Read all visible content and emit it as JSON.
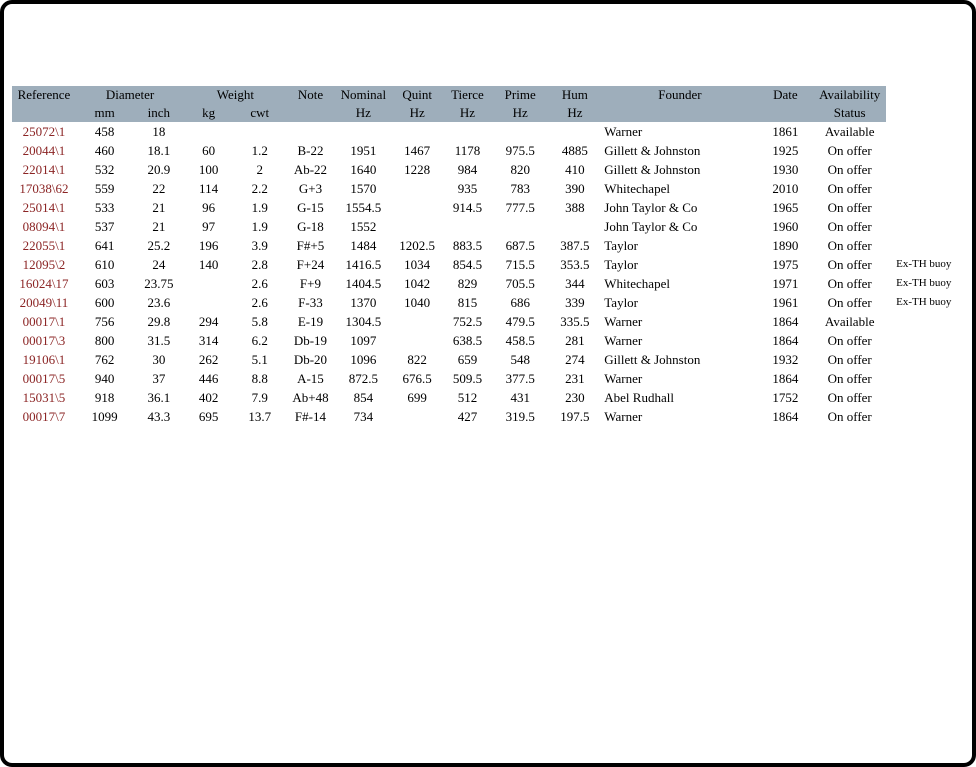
{
  "page": {
    "background": "#ffffff",
    "frame_color": "#000000"
  },
  "table": {
    "header_bg": "#9eaebb",
    "ref_color": "#8b2424",
    "column_keys": [
      "ref",
      "mm",
      "inch",
      "kg",
      "cwt",
      "note",
      "nominal",
      "quint",
      "tierce",
      "prime",
      "hum",
      "founder",
      "date",
      "status",
      "annotation"
    ],
    "header": {
      "reference": "Reference",
      "diameter": "Diameter",
      "weight": "Weight",
      "note": "Note",
      "nominal": "Nominal",
      "quint": "Quint",
      "tierce": "Tierce",
      "prime": "Prime",
      "hum": "Hum",
      "hz": "Hz",
      "mm": "mm",
      "inch": "inch",
      "kg": "kg",
      "cwt": "cwt",
      "founder": "Founder",
      "date": "Date",
      "availability": "Availability",
      "status": "Status"
    },
    "rows": [
      {
        "ref": "25072\\1",
        "mm": "458",
        "inch": "18",
        "kg": "",
        "cwt": "",
        "note": "",
        "nominal": "",
        "quint": "",
        "tierce": "",
        "prime": "",
        "hum": "",
        "founder": "Warner",
        "date": "1861",
        "status": "Available",
        "annotation": ""
      },
      {
        "ref": "20044\\1",
        "mm": "460",
        "inch": "18.1",
        "kg": "60",
        "cwt": "1.2",
        "note": "B-22",
        "nominal": "1951",
        "quint": "1467",
        "tierce": "1178",
        "prime": "975.5",
        "hum": "4885",
        "founder": "Gillett & Johnston",
        "date": "1925",
        "status": "On offer",
        "annotation": ""
      },
      {
        "ref": "22014\\1",
        "mm": "532",
        "inch": "20.9",
        "kg": "100",
        "cwt": "2",
        "note": "Ab-22",
        "nominal": "1640",
        "quint": "1228",
        "tierce": "984",
        "prime": "820",
        "hum": "410",
        "founder": "Gillett & Johnston",
        "date": "1930",
        "status": "On offer",
        "annotation": ""
      },
      {
        "ref": "17038\\62",
        "mm": "559",
        "inch": "22",
        "kg": "114",
        "cwt": "2.2",
        "note": "G+3",
        "nominal": "1570",
        "quint": "",
        "tierce": "935",
        "prime": "783",
        "hum": "390",
        "founder": "Whitechapel",
        "date": "2010",
        "status": "On offer",
        "annotation": ""
      },
      {
        "ref": "25014\\1",
        "mm": "533",
        "inch": "21",
        "kg": "96",
        "cwt": "1.9",
        "note": "G-15",
        "nominal": "1554.5",
        "quint": "",
        "tierce": "914.5",
        "prime": "777.5",
        "hum": "388",
        "founder": "John Taylor & Co",
        "date": "1965",
        "status": "On offer",
        "annotation": ""
      },
      {
        "ref": "08094\\1",
        "mm": "537",
        "inch": "21",
        "kg": "97",
        "cwt": "1.9",
        "note": "G-18",
        "nominal": "1552",
        "quint": "",
        "tierce": "",
        "prime": "",
        "hum": "",
        "founder": "John Taylor & Co",
        "date": "1960",
        "status": "On offer",
        "annotation": ""
      },
      {
        "ref": "22055\\1",
        "mm": "641",
        "inch": "25.2",
        "kg": "196",
        "cwt": "3.9",
        "note": "F#+5",
        "nominal": "1484",
        "quint": "1202.5",
        "tierce": "883.5",
        "prime": "687.5",
        "hum": "387.5",
        "founder": "Taylor",
        "date": "1890",
        "status": "On offer",
        "annotation": ""
      },
      {
        "ref": "12095\\2",
        "mm": "610",
        "inch": "24",
        "kg": "140",
        "cwt": "2.8",
        "note": "F+24",
        "nominal": "1416.5",
        "quint": "1034",
        "tierce": "854.5",
        "prime": "715.5",
        "hum": "353.5",
        "founder": "Taylor",
        "date": "1975",
        "status": "On offer",
        "annotation": "Ex-TH buoy"
      },
      {
        "ref": "16024\\17",
        "mm": "603",
        "inch": "23.75",
        "kg": "",
        "cwt": "2.6",
        "note": "F+9",
        "nominal": "1404.5",
        "quint": "1042",
        "tierce": "829",
        "prime": "705.5",
        "hum": "344",
        "founder": "Whitechapel",
        "date": "1971",
        "status": "On offer",
        "annotation": "Ex-TH buoy"
      },
      {
        "ref": "20049\\11",
        "mm": "600",
        "inch": "23.6",
        "kg": "",
        "cwt": "2.6",
        "note": "F-33",
        "nominal": "1370",
        "quint": "1040",
        "tierce": "815",
        "prime": "686",
        "hum": "339",
        "founder": "Taylor",
        "date": "1961",
        "status": "On offer",
        "annotation": "Ex-TH buoy"
      },
      {
        "ref": "00017\\1",
        "mm": "756",
        "inch": "29.8",
        "kg": "294",
        "cwt": "5.8",
        "note": "E-19",
        "nominal": "1304.5",
        "quint": "",
        "tierce": "752.5",
        "prime": "479.5",
        "hum": "335.5",
        "founder": "Warner",
        "date": "1864",
        "status": "Available",
        "annotation": ""
      },
      {
        "ref": "00017\\3",
        "mm": "800",
        "inch": "31.5",
        "kg": "314",
        "cwt": "6.2",
        "note": "Db-19",
        "nominal": "1097",
        "quint": "",
        "tierce": "638.5",
        "prime": "458.5",
        "hum": "281",
        "founder": "Warner",
        "date": "1864",
        "status": "On offer",
        "annotation": ""
      },
      {
        "ref": "19106\\1",
        "mm": "762",
        "inch": "30",
        "kg": "262",
        "cwt": "5.1",
        "note": "Db-20",
        "nominal": "1096",
        "quint": "822",
        "tierce": "659",
        "prime": "548",
        "hum": "274",
        "founder": "Gillett & Johnston",
        "date": "1932",
        "status": "On offer",
        "annotation": ""
      },
      {
        "ref": "00017\\5",
        "mm": "940",
        "inch": "37",
        "kg": "446",
        "cwt": "8.8",
        "note": "A-15",
        "nominal": "872.5",
        "quint": "676.5",
        "tierce": "509.5",
        "prime": "377.5",
        "hum": "231",
        "founder": "Warner",
        "date": "1864",
        "status": "On offer",
        "annotation": ""
      },
      {
        "ref": "15031\\5",
        "mm": "918",
        "inch": "36.1",
        "kg": "402",
        "cwt": "7.9",
        "note": "Ab+48",
        "nominal": "854",
        "quint": "699",
        "tierce": "512",
        "prime": "431",
        "hum": "230",
        "founder": "Abel Rudhall",
        "date": "1752",
        "status": "On offer",
        "annotation": ""
      },
      {
        "ref": "00017\\7",
        "mm": "1099",
        "inch": "43.3",
        "kg": "695",
        "cwt": "13.7",
        "note": "F#-14",
        "nominal": "734",
        "quint": "",
        "tierce": "427",
        "prime": "319.5",
        "hum": "197.5",
        "founder": "Warner",
        "date": "1864",
        "status": "On offer",
        "annotation": ""
      }
    ]
  }
}
